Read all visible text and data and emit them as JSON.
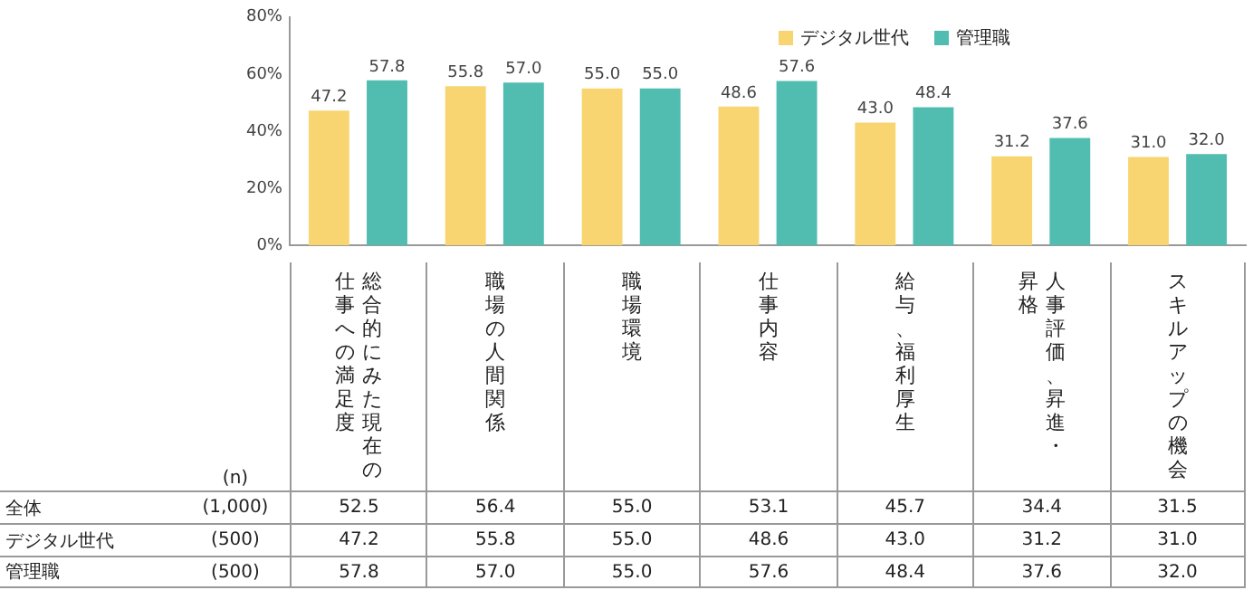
{
  "chart_data": {
    "type": "bar",
    "categories": [
      "総合的にみた現在の仕事への満足度",
      "職場の人間関係",
      "職場環境",
      "仕事内容",
      "給与、福利厚生",
      "人事評価、昇進・昇格",
      "スキルアップの機会"
    ],
    "series": [
      {
        "name": "デジタル世代",
        "color": "#f8d570",
        "values": [
          47.2,
          55.8,
          55.0,
          48.6,
          43.0,
          31.2,
          31.0
        ],
        "value_labels": [
          "47.2",
          "55.8",
          "55.0",
          "48.6",
          "43.0",
          "31.2",
          "31.0"
        ]
      },
      {
        "name": "管理職",
        "color": "#50bdb0",
        "values": [
          57.8,
          57.0,
          55.0,
          57.6,
          48.4,
          37.6,
          32.0
        ],
        "value_labels": [
          "57.8",
          "57.0",
          "55.0",
          "57.6",
          "48.4",
          "37.6",
          "32.0"
        ]
      }
    ],
    "ylim": [
      0,
      80
    ],
    "yticks": [
      {
        "value": 0,
        "label": "0%"
      },
      {
        "value": 20,
        "label": "20%"
      },
      {
        "value": 40,
        "label": "40%"
      },
      {
        "value": 60,
        "label": "60%"
      },
      {
        "value": 80,
        "label": "80%"
      }
    ],
    "grid": false,
    "legend": "top right",
    "annotations": [
      "(n)",
      "全体",
      "(1,000)",
      "(500)",
      "(500)",
      "52.5",
      "56.4",
      "55.0",
      "53.1",
      "45.7",
      "34.4",
      "31.5"
    ]
  }
}
